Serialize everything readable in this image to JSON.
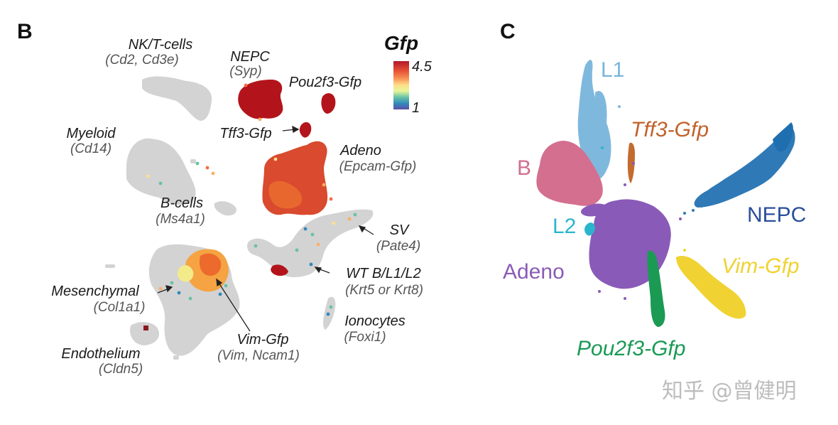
{
  "panelB": {
    "letter": "B",
    "legend": {
      "title": "Gfp",
      "max": "4.5",
      "min": "1",
      "colors": [
        "#b2182b",
        "#d73027",
        "#f46d43",
        "#fdae61",
        "#fee090",
        "#e0f3d0",
        "#66c2a5",
        "#3288bd",
        "#5e4fa2"
      ]
    },
    "labels": {
      "nkt": "NK/T-cells",
      "nkt_sub": "(Cd2, Cd3e)",
      "nepc": "NEPC",
      "nepc_sub": "(Syp)",
      "pou": "Pou2f3-Gfp",
      "myeloid": "Myeloid",
      "myeloid_sub": "(Cd14)",
      "tff3": "Tff3-Gfp",
      "adeno": "Adeno",
      "adeno_sub": "(Epcam-Gfp)",
      "bcells": "B-cells",
      "bcells_sub": "(Ms4a1)",
      "sv": "SV",
      "sv_sub": "(Pate4)",
      "wt": "WT B/L1/L2",
      "wt_sub": "(Krt5 or Krt8)",
      "mes": "Mesenchymal",
      "mes_sub": "(Col1a1)",
      "iono": "Ionocytes",
      "iono_sub": "(Foxi1)",
      "vim": "Vim-Gfp",
      "vim_sub": "(Vim, Ncam1)",
      "endo": "Endothelium",
      "endo_sub": "(Cldn5)"
    }
  },
  "panelC": {
    "letter": "C",
    "clusters": [
      {
        "key": "l1",
        "name": "L1",
        "color": "#78b4dc"
      },
      {
        "key": "tff3",
        "name": "Tff3-Gfp",
        "color": "#c0622b"
      },
      {
        "key": "b",
        "name": "B",
        "color": "#d06f8e"
      },
      {
        "key": "nepc",
        "name": "NEPC",
        "color": "#2a4f9c"
      },
      {
        "key": "l2",
        "name": "L2",
        "color": "#2bb6cc"
      },
      {
        "key": "adeno",
        "name": "Adeno",
        "color": "#8a5ab8"
      },
      {
        "key": "vim",
        "name": "Vim-Gfp",
        "color": "#f0d232"
      },
      {
        "key": "pou",
        "name": "Pou2f3-Gfp",
        "color": "#1a9a55"
      }
    ]
  },
  "watermark": "知乎 @曾健明"
}
